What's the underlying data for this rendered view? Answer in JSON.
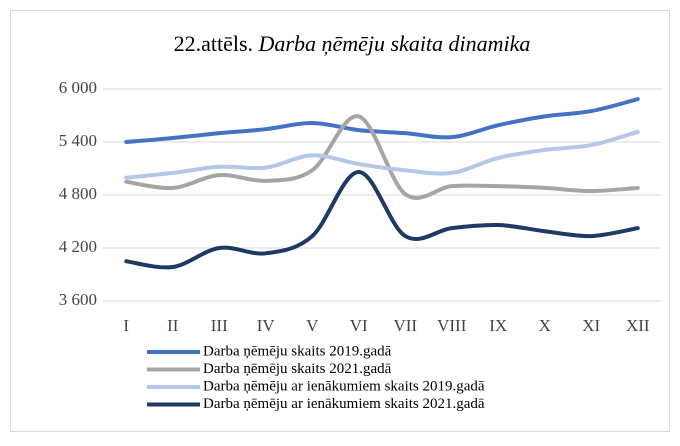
{
  "chart_data": {
    "type": "line",
    "title": {
      "number": "22.attēls.",
      "text": "Darba ņēmēju skaita dinamika"
    },
    "categories": [
      "I",
      "II",
      "III",
      "IV",
      "V",
      "VI",
      "VII",
      "VIII",
      "IX",
      "X",
      "XI",
      "XII"
    ],
    "series": [
      {
        "name": "Darba ņēmēju skaits 2019.gadā",
        "color": "#4472c4",
        "values": [
          5400,
          5445,
          5500,
          5545,
          5615,
          5535,
          5500,
          5455,
          5590,
          5690,
          5750,
          5885
        ]
      },
      {
        "name": "Darba ņēmēju skaits 2021.gadā",
        "color": "#a5a5a5",
        "values": [
          4950,
          4880,
          5025,
          4960,
          5080,
          5690,
          4810,
          4900,
          4900,
          4880,
          4845,
          4880
        ]
      },
      {
        "name": "Darba ņēmēju ar ienākumiem skaits 2019.gadā",
        "color": "#b4c7e7",
        "values": [
          4995,
          5050,
          5120,
          5110,
          5250,
          5150,
          5080,
          5050,
          5220,
          5310,
          5365,
          5515
        ]
      },
      {
        "name": "Darba ņēmēju ar ienākumiem skaits 2021.gadā",
        "color": "#203864",
        "values": [
          4050,
          3985,
          4200,
          4140,
          4335,
          5060,
          4335,
          4425,
          4460,
          4390,
          4335,
          4425
        ]
      }
    ],
    "ylim": [
      3600,
      6000
    ],
    "yticks": [
      {
        "value": 3600,
        "label": "3 600"
      },
      {
        "value": 4200,
        "label": "4 200"
      },
      {
        "value": 4800,
        "label": "4 800"
      },
      {
        "value": 5400,
        "label": "5 400"
      },
      {
        "value": 6000,
        "label": "6 000"
      }
    ],
    "grid": true,
    "legend": "bottom"
  }
}
